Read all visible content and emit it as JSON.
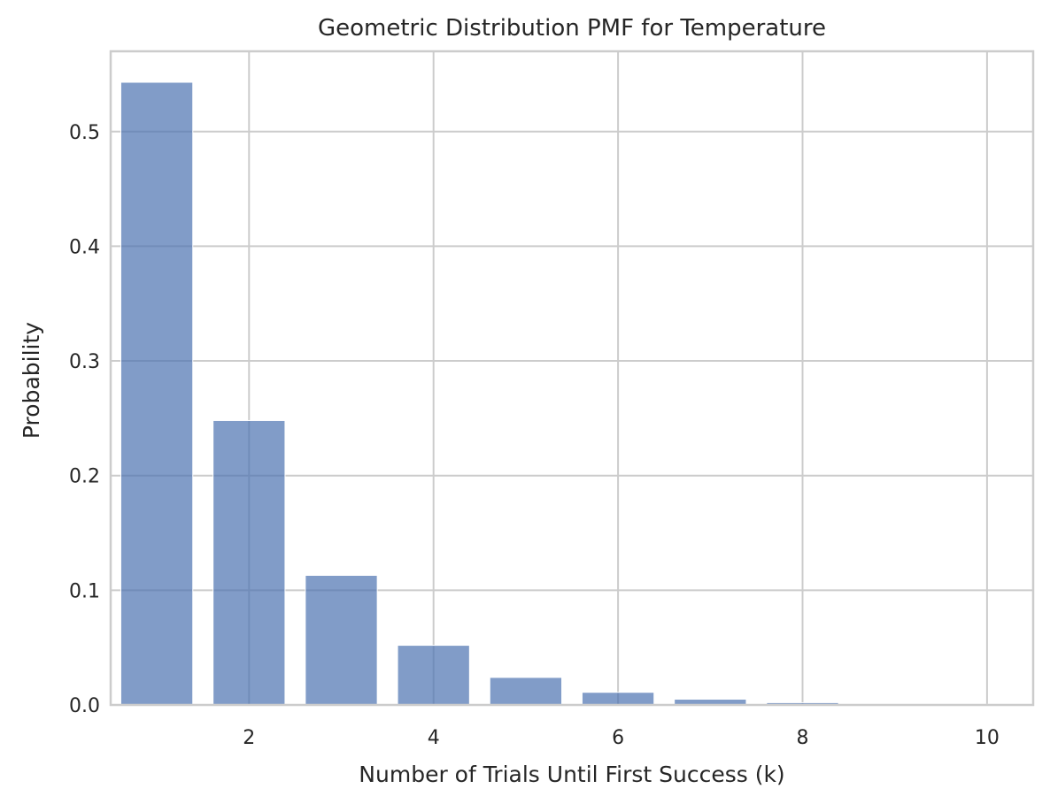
{
  "chart_data": {
    "type": "bar",
    "title": "Geometric Distribution PMF for Temperature",
    "xlabel": "Number of Trials Until First Success (k)",
    "ylabel": "Probability",
    "x": [
      1,
      2,
      3,
      4,
      5,
      6,
      7,
      8,
      9,
      10
    ],
    "values": [
      0.543,
      0.248,
      0.113,
      0.052,
      0.024,
      0.011,
      0.005,
      0.002,
      0.001,
      0.0005
    ],
    "xlim": [
      0.5,
      10.5
    ],
    "ylim": [
      0,
      0.57
    ],
    "xticks": [
      2,
      4,
      6,
      8,
      10
    ],
    "yticks": [
      0.0,
      0.1,
      0.2,
      0.3,
      0.4,
      0.5
    ],
    "ytick_labels": [
      "0.0",
      "0.1",
      "0.2",
      "0.3",
      "0.4",
      "0.5"
    ],
    "xtick_labels": [
      "2",
      "4",
      "6",
      "8",
      "10"
    ],
    "bar_color": "#4c72b0",
    "bar_opacity": 0.7,
    "grid": true
  }
}
